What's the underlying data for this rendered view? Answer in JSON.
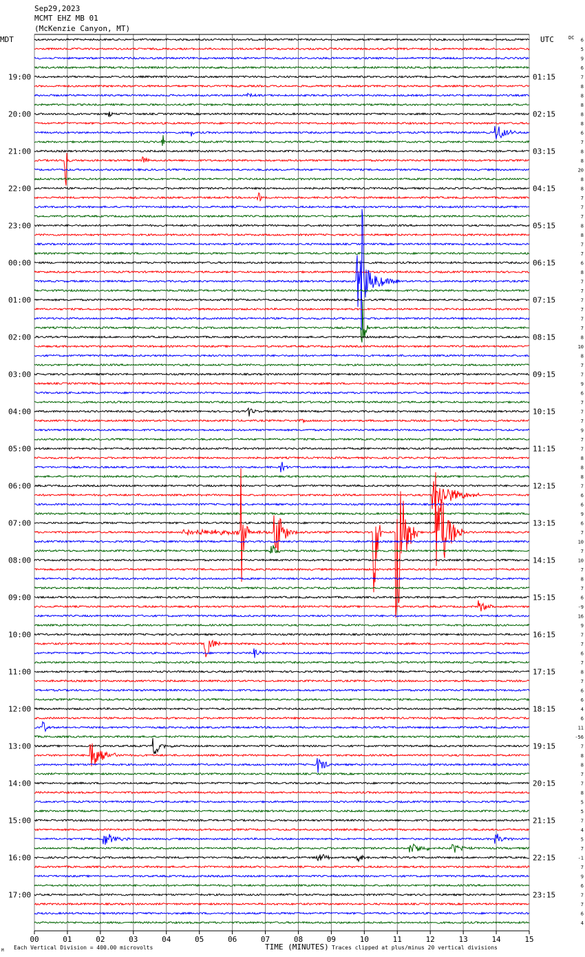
{
  "header": {
    "date": "Sep29,2023",
    "station": "MCMT EHZ MB 01",
    "location": "(McKenzie Canyon, MT)"
  },
  "labels": {
    "left_tz": "MDT",
    "right_tz": "UTC",
    "dc": "DC",
    "x_title": "TIME (MINUTES)",
    "footer_left": "Each Vertical Division =  400.00 microvolts",
    "footer_right": "Traces clipped at plus/minus 20 vertical divisions",
    "corner_mark": "M"
  },
  "colors": {
    "traces": [
      "#000000",
      "#ff0000",
      "#0000ff",
      "#006400"
    ],
    "grid": "#808080",
    "background": "#ffffff",
    "text": "#000000"
  },
  "chart_data": {
    "type": "seismogram",
    "traces_per_hour": 4,
    "trace_count": 96,
    "minutes_per_trace": 15,
    "xlim": [
      0,
      15
    ],
    "x_ticks": [
      "00",
      "01",
      "02",
      "03",
      "04",
      "05",
      "06",
      "07",
      "08",
      "09",
      "10",
      "11",
      "12",
      "13",
      "14",
      "15"
    ],
    "left_hour_labels": [
      {
        "trace": 4,
        "text": "19:00"
      },
      {
        "trace": 8,
        "text": "20:00"
      },
      {
        "trace": 12,
        "text": "21:00"
      },
      {
        "trace": 16,
        "text": "22:00"
      },
      {
        "trace": 20,
        "text": "23:00"
      },
      {
        "trace": 24,
        "text": "00:00"
      },
      {
        "trace": 28,
        "text": "01:00"
      },
      {
        "trace": 32,
        "text": "02:00"
      },
      {
        "trace": 36,
        "text": "03:00"
      },
      {
        "trace": 40,
        "text": "04:00"
      },
      {
        "trace": 44,
        "text": "05:00"
      },
      {
        "trace": 48,
        "text": "06:00"
      },
      {
        "trace": 52,
        "text": "07:00"
      },
      {
        "trace": 56,
        "text": "08:00"
      },
      {
        "trace": 60,
        "text": "09:00"
      },
      {
        "trace": 64,
        "text": "10:00"
      },
      {
        "trace": 68,
        "text": "11:00"
      },
      {
        "trace": 72,
        "text": "12:00"
      },
      {
        "trace": 76,
        "text": "13:00"
      },
      {
        "trace": 80,
        "text": "14:00"
      },
      {
        "trace": 84,
        "text": "15:00"
      },
      {
        "trace": 88,
        "text": "16:00"
      },
      {
        "trace": 92,
        "text": "17:00"
      }
    ],
    "right_hour_labels": [
      {
        "trace": 4,
        "text": "01:15"
      },
      {
        "trace": 8,
        "text": "02:15"
      },
      {
        "trace": 12,
        "text": "03:15"
      },
      {
        "trace": 16,
        "text": "04:15"
      },
      {
        "trace": 20,
        "text": "05:15"
      },
      {
        "trace": 24,
        "text": "06:15"
      },
      {
        "trace": 28,
        "text": "07:15"
      },
      {
        "trace": 32,
        "text": "08:15"
      },
      {
        "trace": 36,
        "text": "09:15"
      },
      {
        "trace": 40,
        "text": "10:15"
      },
      {
        "trace": 44,
        "text": "11:15"
      },
      {
        "trace": 48,
        "text": "12:15"
      },
      {
        "trace": 52,
        "text": "13:15"
      },
      {
        "trace": 56,
        "text": "14:15"
      },
      {
        "trace": 60,
        "text": "15:15"
      },
      {
        "trace": 64,
        "text": "16:15"
      },
      {
        "trace": 68,
        "text": "17:15"
      },
      {
        "trace": 72,
        "text": "18:15"
      },
      {
        "trace": 76,
        "text": "19:15"
      },
      {
        "trace": 80,
        "text": "20:15"
      },
      {
        "trace": 84,
        "text": "21:15"
      },
      {
        "trace": 88,
        "text": "22:15"
      },
      {
        "trace": 92,
        "text": "23:15"
      }
    ],
    "dc_offsets": [
      "6",
      "5",
      "9",
      "6",
      "7",
      "8",
      "8",
      "8",
      "8",
      "8",
      "6",
      "7",
      "8",
      "8",
      "20",
      "8",
      "8",
      "7",
      "7",
      "7",
      "8",
      "8",
      "7",
      "7",
      "6",
      "8",
      "7",
      "7",
      "7",
      "7",
      "7",
      "7",
      "8",
      "10",
      "8",
      "7",
      "7",
      "9",
      "6",
      "7",
      "7",
      "7",
      "9",
      "7",
      "7",
      "8",
      "8",
      "8",
      "7",
      "6",
      "6",
      "9",
      "6",
      "7",
      "10",
      "7",
      "10",
      "7",
      "8",
      "7",
      "6",
      "-9",
      "16",
      "9",
      "7",
      "7",
      "6",
      "7",
      "8",
      "7",
      "6",
      "6",
      "4",
      "6",
      "11",
      "-56",
      "7",
      "8",
      "8",
      "7",
      "7",
      "8",
      "5",
      "5",
      "7",
      "4",
      "5",
      "7",
      "-1",
      "7",
      "9",
      "6",
      "7",
      "7",
      "6",
      "4"
    ],
    "events": [
      {
        "trace": 6,
        "minute": 6.5,
        "amp": 3,
        "dur": 0.3
      },
      {
        "trace": 8,
        "minute": 2.3,
        "amp": 4,
        "dur": 0.1
      },
      {
        "trace": 10,
        "minute": 4.8,
        "amp": 5,
        "dur": 0.1
      },
      {
        "trace": 10,
        "minute": 14.0,
        "amp": 14,
        "dur": 0.8
      },
      {
        "trace": 11,
        "minute": 3.9,
        "amp": 10,
        "dur": 0.1
      },
      {
        "trace": 13,
        "minute": 3.3,
        "amp": 6,
        "dur": 0.3
      },
      {
        "trace": 13,
        "minute": 0.95,
        "amp": 60,
        "dur": 0.1
      },
      {
        "trace": 17,
        "minute": 6.8,
        "amp": 10,
        "dur": 0.2
      },
      {
        "trace": 26,
        "minute": 9.8,
        "amp": 40,
        "dur": 1.2
      },
      {
        "trace": 26,
        "minute": 9.95,
        "amp": 140,
        "dur": 0.1
      },
      {
        "trace": 31,
        "minute": 9.95,
        "amp": 40,
        "dur": 0.2
      },
      {
        "trace": 40,
        "minute": 6.5,
        "amp": 8,
        "dur": 0.3
      },
      {
        "trace": 41,
        "minute": 8.1,
        "amp": 4,
        "dur": 0.2
      },
      {
        "trace": 46,
        "minute": 7.5,
        "amp": 10,
        "dur": 0.2
      },
      {
        "trace": 49,
        "minute": 12.1,
        "amp": 25,
        "dur": 1.5
      },
      {
        "trace": 53,
        "minute": 6.3,
        "amp": 140,
        "dur": 0.2
      },
      {
        "trace": 53,
        "minute": 7.3,
        "amp": 45,
        "dur": 0.6
      },
      {
        "trace": 53,
        "minute": 10.3,
        "amp": 140,
        "dur": 0.2
      },
      {
        "trace": 53,
        "minute": 11.0,
        "amp": 140,
        "dur": 0.6
      },
      {
        "trace": 53,
        "minute": 12.2,
        "amp": 90,
        "dur": 0.8
      },
      {
        "trace": 53,
        "minute": 4.5,
        "amp": 5,
        "dur": 6.0
      },
      {
        "trace": 55,
        "minute": 7.2,
        "amp": 10,
        "dur": 0.4
      },
      {
        "trace": 61,
        "minute": 13.5,
        "amp": 10,
        "dur": 0.6
      },
      {
        "trace": 65,
        "minute": 5.2,
        "amp": 20,
        "dur": 0.6
      },
      {
        "trace": 66,
        "minute": 6.7,
        "amp": 8,
        "dur": 0.3
      },
      {
        "trace": 74,
        "minute": 0.3,
        "amp": 10,
        "dur": 0.2
      },
      {
        "trace": 76,
        "minute": 3.6,
        "amp": 15,
        "dur": 0.6
      },
      {
        "trace": 77,
        "minute": 1.7,
        "amp": 25,
        "dur": 1.0
      },
      {
        "trace": 78,
        "minute": 8.6,
        "amp": 15,
        "dur": 0.5
      },
      {
        "trace": 86,
        "minute": 2.1,
        "amp": 12,
        "dur": 0.8
      },
      {
        "trace": 86,
        "minute": 14.0,
        "amp": 8,
        "dur": 0.6
      },
      {
        "trace": 87,
        "minute": 11.4,
        "amp": 10,
        "dur": 1.0
      },
      {
        "trace": 87,
        "minute": 12.7,
        "amp": 8,
        "dur": 0.6
      },
      {
        "trace": 88,
        "minute": 8.6,
        "amp": 8,
        "dur": 0.6
      },
      {
        "trace": 88,
        "minute": 9.8,
        "amp": 6,
        "dur": 0.6
      }
    ]
  }
}
